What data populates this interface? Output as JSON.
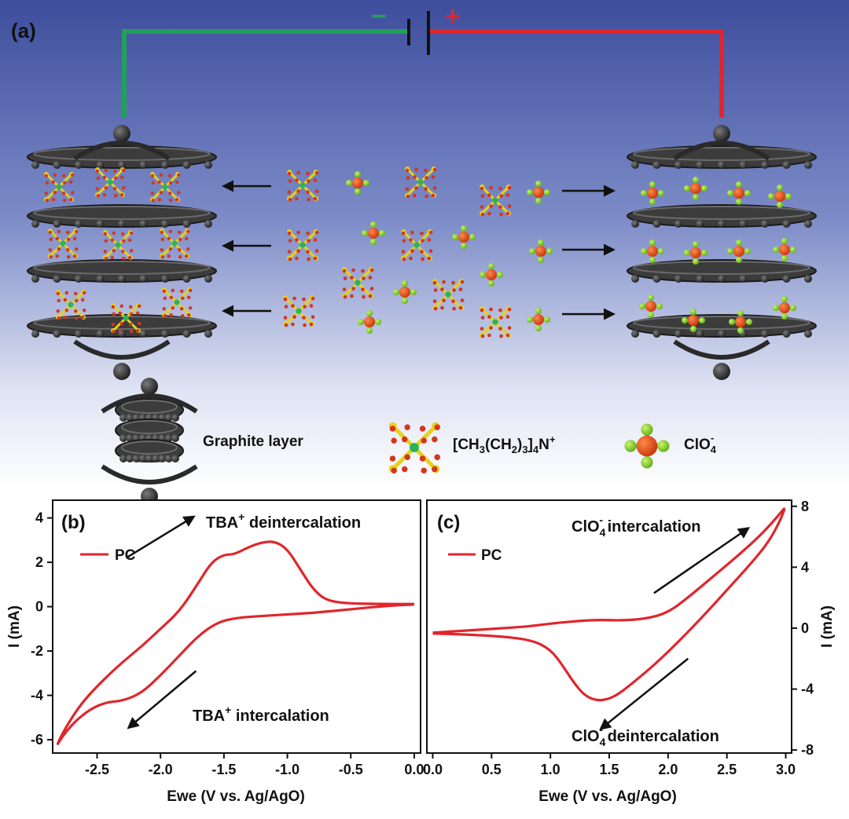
{
  "panel_a": {
    "label": "(a)",
    "battery": {
      "minus": "−",
      "plus": "+"
    },
    "legend": {
      "graphite": "Graphite layer",
      "tba_formula": {
        "p1": "[CH",
        "s1": "3",
        "p2": "(CH",
        "s2": "2",
        "p3": ")",
        "s3": "3",
        "p4": "]",
        "s4": "4",
        "p5": "N",
        "sup": "+"
      },
      "clo4": {
        "base": "ClO",
        "sub": "4",
        "sup": "-"
      }
    }
  },
  "chart_data": [
    {
      "type": "line",
      "panel": "(b)",
      "legend_entry": "PC",
      "xlabel": "Ewe (V vs. Ag/AgO)",
      "ylabel": "I (mA)",
      "xlim": [
        -2.85,
        0.05
      ],
      "ylim": [
        -6.6,
        4.8
      ],
      "xticks": [
        "-2.5",
        "-2.0",
        "-1.5",
        "-1.0",
        "-0.5",
        "0.0"
      ],
      "xtick_values": [
        -2.5,
        -2.0,
        -1.5,
        -1.0,
        -0.5,
        0.0
      ],
      "yticks": [
        "4",
        "2",
        "0",
        "-2",
        "-4",
        "-6"
      ],
      "ytick_values": [
        4,
        2,
        0,
        -2,
        -4,
        -6
      ],
      "annotations": {
        "top": {
          "base": "TBA",
          "sup": "+",
          "rest": " deintercalation"
        },
        "bottom": {
          "base": "TBA",
          "sup": "+",
          "rest": " intercalation"
        }
      },
      "series_color": "#e0262c",
      "curve": [
        [
          0.0,
          0.1
        ],
        [
          -0.2,
          0.05
        ],
        [
          -0.5,
          -0.12
        ],
        [
          -0.8,
          -0.28
        ],
        [
          -1.0,
          -0.35
        ],
        [
          -1.2,
          -0.42
        ],
        [
          -1.4,
          -0.5
        ],
        [
          -1.55,
          -0.7
        ],
        [
          -1.7,
          -1.3
        ],
        [
          -1.85,
          -2.2
        ],
        [
          -2.0,
          -3.1
        ],
        [
          -2.15,
          -3.9
        ],
        [
          -2.3,
          -4.25
        ],
        [
          -2.42,
          -4.3
        ],
        [
          -2.55,
          -4.6
        ],
        [
          -2.68,
          -5.2
        ],
        [
          -2.78,
          -5.9
        ],
        [
          -2.82,
          -6.3
        ],
        [
          -2.78,
          -5.8
        ],
        [
          -2.7,
          -5.0
        ],
        [
          -2.6,
          -4.2
        ],
        [
          -2.45,
          -3.3
        ],
        [
          -2.3,
          -2.5
        ],
        [
          -2.15,
          -1.8
        ],
        [
          -2.0,
          -1.0
        ],
        [
          -1.85,
          -0.2
        ],
        [
          -1.72,
          0.9
        ],
        [
          -1.6,
          2.0
        ],
        [
          -1.5,
          2.35
        ],
        [
          -1.42,
          2.35
        ],
        [
          -1.3,
          2.7
        ],
        [
          -1.2,
          2.9
        ],
        [
          -1.1,
          2.95
        ],
        [
          -1.0,
          2.6
        ],
        [
          -0.9,
          1.7
        ],
        [
          -0.8,
          0.8
        ],
        [
          -0.7,
          0.3
        ],
        [
          -0.55,
          0.15
        ],
        [
          -0.3,
          0.12
        ],
        [
          0.0,
          0.12
        ]
      ],
      "arrows": [
        {
          "from": [
            -2.27,
            2.2
          ],
          "to": [
            -1.74,
            4.05
          ]
        },
        {
          "from": [
            -1.72,
            -2.9
          ],
          "to": [
            -2.25,
            -5.45
          ]
        }
      ]
    },
    {
      "type": "line",
      "panel": "(c)",
      "legend_entry": "PC",
      "xlabel": "Ewe (V vs. Ag/AgO)",
      "ylabel": "I (mA)",
      "xlim": [
        -0.05,
        3.05
      ],
      "ylim": [
        -8.2,
        8.4
      ],
      "xticks": [
        "0.0",
        "0.5",
        "1.0",
        "1.5",
        "2.0",
        "2.5",
        "3.0"
      ],
      "xtick_values": [
        0.0,
        0.5,
        1.0,
        1.5,
        2.0,
        2.5,
        3.0
      ],
      "yticks": [
        "8",
        "4",
        "0",
        "-4",
        "-8"
      ],
      "ytick_values": [
        8,
        4,
        0,
        -4,
        -8
      ],
      "annotations": {
        "top": {
          "base": "ClO",
          "sub": "4",
          "sup": "-",
          "rest": "  intercalation"
        },
        "bottom": {
          "base": "ClO",
          "sub": "4",
          "sup": "-",
          "rest": "  deintercalation"
        }
      },
      "series_color": "#e0262c",
      "curve": [
        [
          0.0,
          -0.3
        ],
        [
          0.5,
          -0.05
        ],
        [
          0.8,
          0.1
        ],
        [
          1.0,
          0.3
        ],
        [
          1.2,
          0.45
        ],
        [
          1.4,
          0.55
        ],
        [
          1.6,
          0.5
        ],
        [
          1.8,
          0.6
        ],
        [
          2.0,
          1.0
        ],
        [
          2.2,
          2.2
        ],
        [
          2.4,
          3.5
        ],
        [
          2.6,
          4.8
        ],
        [
          2.8,
          6.2
        ],
        [
          2.95,
          7.5
        ],
        [
          3.0,
          8.0
        ],
        [
          2.95,
          7.0
        ],
        [
          2.85,
          5.6
        ],
        [
          2.7,
          4.2
        ],
        [
          2.5,
          2.5
        ],
        [
          2.3,
          0.8
        ],
        [
          2.1,
          -0.8
        ],
        [
          1.9,
          -2.3
        ],
        [
          1.7,
          -3.6
        ],
        [
          1.55,
          -4.5
        ],
        [
          1.42,
          -4.8
        ],
        [
          1.3,
          -4.5
        ],
        [
          1.2,
          -3.6
        ],
        [
          1.1,
          -2.4
        ],
        [
          1.0,
          -1.4
        ],
        [
          0.85,
          -0.8
        ],
        [
          0.6,
          -0.55
        ],
        [
          0.3,
          -0.42
        ],
        [
          0.0,
          -0.35
        ]
      ],
      "arrows": [
        {
          "from": [
            1.88,
            2.3
          ],
          "to": [
            2.68,
            6.55
          ]
        },
        {
          "from": [
            2.17,
            -2.0
          ],
          "to": [
            1.43,
            -6.6
          ]
        }
      ]
    }
  ]
}
